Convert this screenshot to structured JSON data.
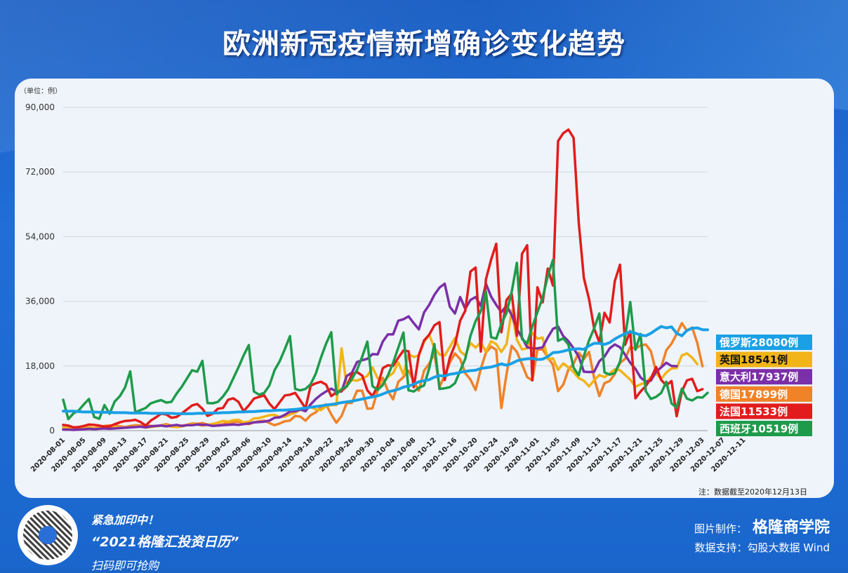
{
  "header": {
    "title": "欧洲新冠疫情新增确诊变化趋势"
  },
  "chart_data": {
    "type": "line",
    "title": "欧洲新冠疫情新增确诊变化趋势",
    "unit_label": "（单位：例）",
    "note": "注：数据截至2020年12月13日",
    "ylim": [
      0,
      90000
    ],
    "y_ticks": [
      "0",
      "18,000",
      "36,000",
      "54,000",
      "72,000",
      "90,000"
    ],
    "y_tick_values": [
      0,
      18000,
      36000,
      54000,
      72000,
      90000
    ],
    "x_tick_labels": [
      "2020-08-01",
      "2020-08-05",
      "2020-08-09",
      "2020-08-13",
      "2020-08-17",
      "2020-08-21",
      "2020-08-25",
      "2020-08-29",
      "2020-09-02",
      "2020-09-06",
      "2020-09-10",
      "2020-09-14",
      "2020-09-18",
      "2020-09-22",
      "2020-09-26",
      "2020-09-30",
      "2020-10-04",
      "2020-10-08",
      "2020-10-12",
      "2020-10-16",
      "2020-10-20",
      "2020-10-24",
      "2020-10-28",
      "2020-11-01",
      "2020-11-05",
      "2020-11-09",
      "2020-11-13",
      "2020-11-17",
      "2020-11-21",
      "2020-11-25",
      "2020-11-29",
      "2020-12-03",
      "2020-12-07",
      "2020-12-11"
    ],
    "grid": "horizontal",
    "legend_position": "right",
    "series": [
      {
        "name": "俄罗斯",
        "label": "俄罗斯28080例",
        "color": "#1aa0e6",
        "values": [
          5400,
          5400,
          5400,
          5300,
          5200,
          5200,
          5200,
          5100,
          5100,
          5100,
          5000,
          5000,
          5000,
          4900,
          4900,
          4900,
          4900,
          4800,
          4800,
          4800,
          4800,
          4800,
          4700,
          4700,
          4700,
          4700,
          4800,
          4800,
          4900,
          4900,
          4900,
          5000,
          5000,
          5100,
          5200,
          5200,
          5300,
          5300,
          5400,
          5500,
          5500,
          5600,
          5700,
          5700,
          5800,
          5900,
          6100,
          6300,
          6500,
          6700,
          6900,
          7100,
          7300,
          7500,
          7800,
          8000,
          8200,
          8500,
          8800,
          9100,
          9400,
          9700,
          10200,
          10800,
          11100,
          11500,
          12100,
          12400,
          12900,
          13600,
          13900,
          14200,
          14900,
          15300,
          15200,
          15700,
          15900,
          16200,
          16500,
          16700,
          16800,
          17300,
          17500,
          17700,
          18100,
          18600,
          18200,
          18700,
          19400,
          19800,
          20000,
          20100,
          19800,
          19900,
          20600,
          21700,
          21800,
          22100,
          22500,
          22700,
          22800,
          22600,
          23600,
          24300,
          24300,
          24000,
          24500,
          25500,
          26300,
          27000,
          27500,
          27100,
          26600,
          26400,
          27100,
          28100,
          29000,
          28600,
          28900,
          27100,
          26400,
          27900,
          28500,
          28600,
          28100,
          28080
        ]
      },
      {
        "name": "英国",
        "label": "英国18541例",
        "color": "#f2b418",
        "values": [
          740,
          900,
          600,
          700,
          850,
          1000,
          700,
          800,
          900,
          1100,
          1000,
          800,
          900,
          1000,
          1200,
          1100,
          900,
          1000,
          1200,
          1400,
          1500,
          1100,
          1000,
          1200,
          1500,
          1800,
          1700,
          1400,
          1600,
          1900,
          2200,
          2700,
          2500,
          2900,
          3000,
          2300,
          2500,
          3400,
          3500,
          3900,
          4300,
          4400,
          3800,
          3900,
          4500,
          5000,
          5800,
          6100,
          6600,
          5900,
          5700,
          6800,
          7100,
          7100,
          22900,
          12600,
          14100,
          13900,
          14500,
          15200,
          17600,
          14600,
          13000,
          15000,
          16000,
          18980,
          15600,
          21300,
          20500,
          20900,
          24700,
          26700,
          23000,
          21200,
          20900,
          23300,
          25800,
          22100,
          20900,
          24400,
          23100,
          24600,
          21900,
          24900,
          24100,
          21900,
          24100,
          33500,
          25300,
          22600,
          22900,
          27300,
          25600,
          25900,
          19900,
          20100,
          16900,
          18700,
          17600,
          16300,
          14600,
          13900,
          12300,
          14000,
          15500,
          14900,
          15900,
          17100,
          16800,
          15500,
          14200,
          12200,
          12900,
          13400,
          14900,
          15900,
          14400,
          16200,
          17300,
          17400,
          20900,
          21500,
          20300,
          18541
        ]
      },
      {
        "name": "意大利",
        "label": "意大利17937例",
        "color": "#7b2fa8",
        "values": [
          300,
          300,
          200,
          300,
          400,
          500,
          400,
          500,
          600,
          500,
          600,
          700,
          800,
          900,
          1000,
          1100,
          900,
          1200,
          1300,
          1400,
          1200,
          1400,
          1600,
          1300,
          1500,
          1500,
          1700,
          1600,
          1600,
          1300,
          1400,
          1500,
          1600,
          1700,
          1600,
          1800,
          2000,
          2300,
          2400,
          2500,
          2800,
          3600,
          3700,
          4400,
          5300,
          5400,
          5900,
          5400,
          7300,
          8800,
          10000,
          10900,
          11700,
          10900,
          10900,
          15200,
          16100,
          19100,
          19600,
          20000,
          21300,
          21200,
          24800,
          26800,
          26800,
          30600,
          31000,
          31800,
          29900,
          28200,
          32900,
          35000,
          37800,
          39800,
          40900,
          34500,
          32600,
          37200,
          33900,
          36400,
          37200,
          34700,
          40900,
          37300,
          35000,
          33000,
          34800,
          32200,
          28300,
          25900,
          23200,
          22900,
          22900,
          23200,
          25900,
          28300,
          29000,
          26300,
          24900,
          22900,
          20600,
          16400,
          16300,
          16400,
          19300,
          20600,
          22900,
          24000,
          23200,
          21100,
          18900,
          17200,
          14800,
          13600,
          13900,
          16400,
          17600,
          18900,
          18000,
          17937
        ]
      },
      {
        "name": "德国",
        "label": "德国17899例",
        "color": "#f08228",
        "values": [
          900,
          600,
          700,
          800,
          1100,
          900,
          700,
          1000,
          1300,
          1400,
          1500,
          1200,
          1000,
          1300,
          1500,
          1400,
          1600,
          1300,
          1200,
          1500,
          1800,
          1400,
          1100,
          1400,
          1600,
          2000,
          1900,
          2100,
          1700,
          1300,
          1500,
          1800,
          2300,
          2400,
          2500,
          2000,
          1800,
          2300,
          2600,
          2800,
          2100,
          1500,
          2000,
          2600,
          2800,
          4100,
          3900,
          2800,
          4300,
          5100,
          6600,
          7300,
          4500,
          2200,
          4100,
          7700,
          7700,
          11100,
          11100,
          6100,
          6200,
          11300,
          14700,
          11000,
          8700,
          13600,
          14900,
          16700,
          13700,
          11100,
          16700,
          18600,
          21500,
          12100,
          15400,
          19000,
          21500,
          19900,
          16000,
          14200,
          11300,
          17200,
          21700,
          23400,
          22500,
          6300,
          15800,
          23600,
          21900,
          18500,
          14900,
          14000,
          22600,
          22600,
          20400,
          18300,
          11000,
          12800,
          17000,
          18600,
          21700,
          19900,
          21900,
          14600,
          9600,
          13200,
          13800,
          15800,
          18800,
          20000,
          23300,
          22800,
          23700,
          24000,
          22100,
          16400,
          17600,
          22400,
          24200,
          26900,
          29900,
          27800,
          28700,
          24400,
          17899
        ]
      },
      {
        "name": "法国",
        "label": "法国11533例",
        "color": "#e21c1c",
        "values": [
          1600,
          1400,
          900,
          1000,
          1300,
          1700,
          1600,
          1400,
          1100,
          1200,
          1800,
          2300,
          2700,
          2800,
          3000,
          2400,
          1400,
          2800,
          3700,
          4700,
          4500,
          3600,
          3800,
          4800,
          5900,
          7000,
          7400,
          6100,
          4100,
          4700,
          6100,
          6300,
          8600,
          9000,
          8000,
          5400,
          7000,
          8900,
          9400,
          9800,
          7500,
          6000,
          7900,
          9800,
          10000,
          10500,
          8400,
          6200,
          12500,
          13200,
          13600,
          12800,
          9600,
          10700,
          11100,
          12300,
          15700,
          16300,
          15300,
          11200,
          9600,
          12400,
          17400,
          18200,
          18000,
          20300,
          22300,
          22100,
          12100,
          21100,
          25100,
          26700,
          29300,
          30200,
          14100,
          20300,
          23900,
          30600,
          33400,
          44300,
          45400,
          22000,
          42100,
          47600,
          52000,
          27400,
          36400,
          38100,
          26400,
          49200,
          51600,
          14000,
          39900,
          35700,
          45100,
          40400,
          80600,
          82800,
          83800,
          81500,
          58000,
          42500,
          36600,
          28400,
          24600,
          32800,
          30100,
          41600,
          46200,
          23900,
          27700,
          9000,
          10900,
          12400,
          14500,
          17700,
          14100,
          12600,
          13800,
          4000,
          10900,
          14000,
          14400,
          11000,
          11533
        ]
      },
      {
        "name": "西班牙",
        "label": "西班牙10519例",
        "color": "#1e9b4a",
        "values": [
          8600,
          3200,
          4800,
          5600,
          7300,
          8800,
          3800,
          3300,
          7100,
          4700,
          8100,
          9600,
          12000,
          16500,
          5100,
          5700,
          6300,
          7600,
          8100,
          8500,
          7800,
          8000,
          10300,
          12200,
          14500,
          16800,
          16400,
          19400,
          7700,
          7600,
          8000,
          9500,
          11500,
          14600,
          17600,
          20900,
          23800,
          10900,
          10000,
          10500,
          12600,
          16800,
          19300,
          22700,
          26300,
          11600,
          11200,
          11600,
          12900,
          15900,
          20300,
          24200,
          27400,
          10100,
          11600,
          12300,
          14400,
          16900,
          20600,
          24800,
          12400,
          11300,
          12700,
          15400,
          18900,
          23100,
          27300,
          11200,
          10900,
          11900,
          12600,
          17300,
          24100,
          11600,
          11800,
          12100,
          13200,
          16700,
          20000,
          26400,
          30500,
          33200,
          38700,
          26000,
          25600,
          29700,
          32800,
          38600,
          46700,
          25500,
          24300,
          29000,
          33000,
          37000,
          43000,
          47500,
          25000,
          25700,
          24000,
          17500,
          15400,
          20800,
          25100,
          28500,
          32600,
          16200,
          15600,
          16000,
          19200,
          26000,
          35800,
          22500,
          26900,
          11000,
          8800,
          9400,
          10500,
          13600,
          7600,
          6400,
          11700,
          8900,
          8400,
          9300,
          9200,
          10519
        ]
      }
    ]
  },
  "footer": {
    "promo_line1": "紧急加印中！",
    "promo_line2": "“2021格隆汇投资日历”",
    "promo_line3": "扫码即可抢购",
    "credit_label": "图片制作：",
    "credit_brand": "格隆商学院",
    "source": "数据支持：勾股大数据 Wind",
    "watermark": "格隆汇"
  }
}
